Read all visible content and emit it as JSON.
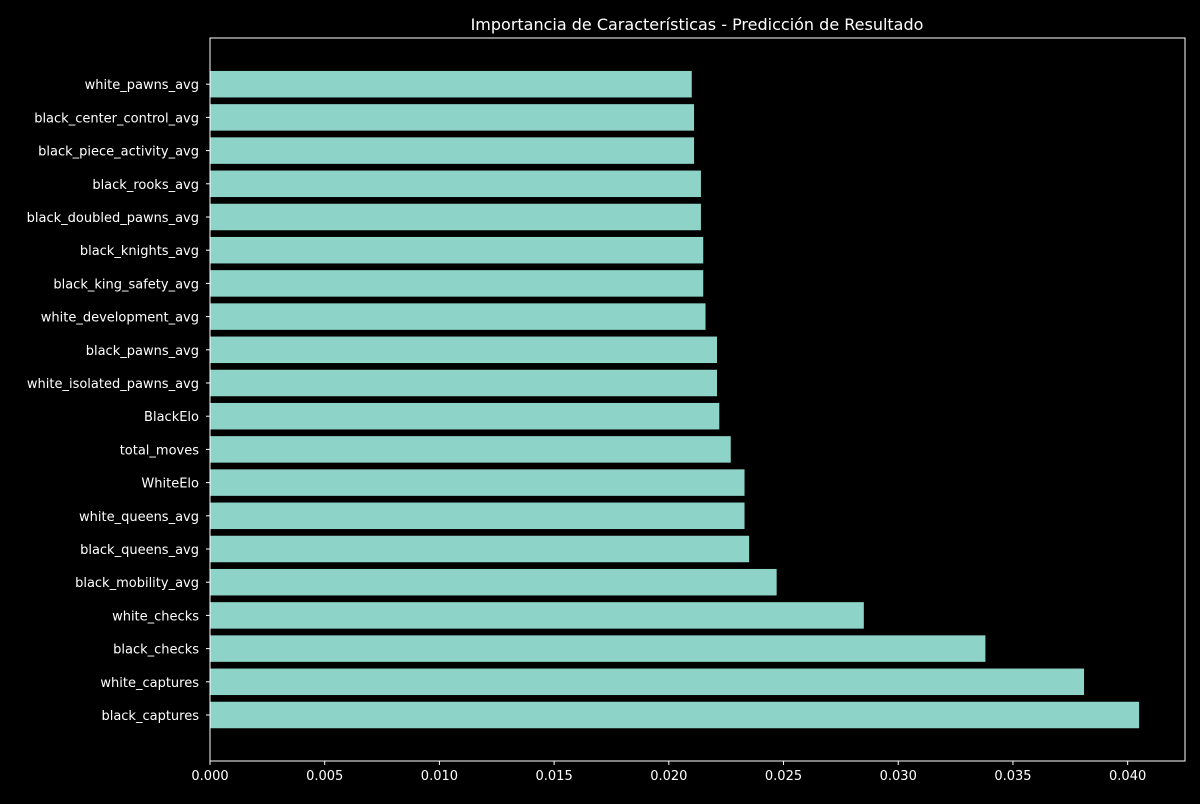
{
  "chart_data": {
    "type": "bar",
    "orientation": "horizontal",
    "title": "Importancia de Características - Predicción de Resultado",
    "xlabel": "",
    "ylabel": "",
    "categories": [
      "black_captures",
      "white_captures",
      "black_checks",
      "white_checks",
      "black_mobility_avg",
      "black_queens_avg",
      "white_queens_avg",
      "WhiteElo",
      "total_moves",
      "BlackElo",
      "white_isolated_pawns_avg",
      "black_pawns_avg",
      "white_development_avg",
      "black_king_safety_avg",
      "black_knights_avg",
      "black_doubled_pawns_avg",
      "black_rooks_avg",
      "black_piece_activity_avg",
      "black_center_control_avg",
      "white_pawns_avg"
    ],
    "values": [
      0.0405,
      0.0381,
      0.0338,
      0.0285,
      0.0247,
      0.0235,
      0.0233,
      0.0233,
      0.0227,
      0.0222,
      0.0221,
      0.0221,
      0.0216,
      0.0215,
      0.0215,
      0.0214,
      0.0214,
      0.0211,
      0.0211,
      0.021
    ],
    "xlim": [
      0,
      0.0425
    ],
    "xticks": [
      "0.000",
      "0.005",
      "0.010",
      "0.015",
      "0.020",
      "0.025",
      "0.030",
      "0.035",
      "0.040"
    ],
    "grid": false,
    "legend": "none",
    "colors": {
      "background": "#000000",
      "bar": "#8dd3c7",
      "axes": "#ffffff",
      "text": "#ffffff"
    }
  }
}
